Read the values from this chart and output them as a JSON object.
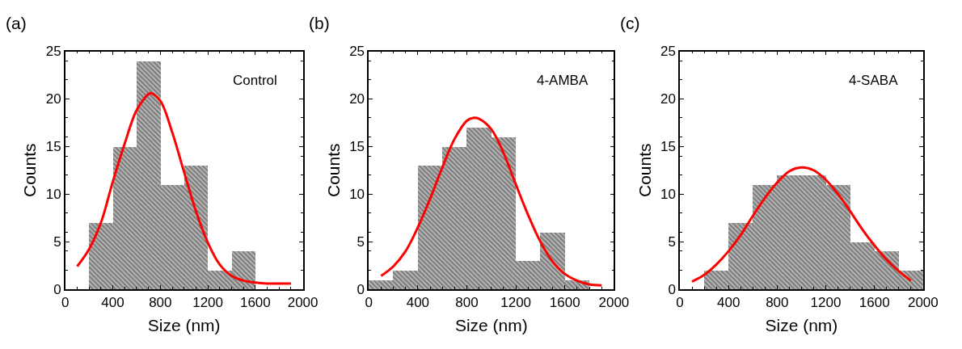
{
  "chart_data": [
    {
      "type": "histogram",
      "title": "(a)",
      "xlabel": "Size (nm)",
      "ylabel": "Counts",
      "annotations": [
        "Control"
      ],
      "bins": [
        200,
        400,
        600,
        800,
        1000,
        1200,
        1400,
        1600
      ],
      "values": [
        7,
        15,
        24,
        11,
        13,
        2,
        4
      ],
      "color": "#3a3a3a",
      "series": [
        {
          "type": "line",
          "color": "#ff0000",
          "x": [
            100,
            200,
            300,
            400,
            500,
            600,
            700,
            720,
            800,
            900,
            1000,
            1100,
            1200,
            1300,
            1400,
            1500,
            1600,
            1700,
            1800,
            1900
          ],
          "values": [
            2.4,
            4.2,
            7,
            11.3,
            15.3,
            18.8,
            20.5,
            20.6,
            19.8,
            16.5,
            12.3,
            8.2,
            4.9,
            2.6,
            1.4,
            0.9,
            0.7,
            0.6,
            0.6,
            0.6
          ]
        }
      ],
      "xlim": [
        0,
        2000
      ],
      "xticks": [
        0,
        400,
        800,
        1200,
        1600,
        2000
      ],
      "ylim": [
        0,
        25
      ],
      "yticks": [
        0,
        5,
        10,
        15,
        20,
        25
      ]
    },
    {
      "type": "histogram",
      "title": "(b)",
      "xlabel": "Size (nm)",
      "ylabel": "Counts",
      "annotations": [
        "4-AMBA"
      ],
      "bins": [
        0,
        200,
        400,
        600,
        800,
        1000,
        1200,
        1400,
        1600,
        1800
      ],
      "values": [
        1,
        2,
        13,
        15,
        17,
        16,
        3,
        6,
        1
      ],
      "color": "#3a3a3a",
      "series": [
        {
          "type": "line",
          "color": "#ff0000",
          "x": [
            100,
            200,
            300,
            400,
            500,
            600,
            700,
            800,
            850,
            900,
            1000,
            1100,
            1200,
            1300,
            1400,
            1500,
            1600,
            1700,
            1800,
            1900
          ],
          "values": [
            1.4,
            2.4,
            4,
            6.5,
            9.5,
            12.8,
            15.8,
            17.7,
            18,
            17.9,
            16.8,
            14.3,
            11,
            7.8,
            5,
            2.9,
            1.6,
            0.9,
            0.5,
            0.4
          ]
        }
      ],
      "xlim": [
        0,
        2000
      ],
      "xticks": [
        0,
        400,
        800,
        1200,
        1600,
        2000
      ],
      "ylim": [
        0,
        25
      ],
      "yticks": [
        0,
        5,
        10,
        15,
        20,
        25
      ]
    },
    {
      "type": "histogram",
      "title": "(c)",
      "xlabel": "Size (nm)",
      "ylabel": "Counts",
      "annotations": [
        "4-SABA"
      ],
      "bins": [
        200,
        400,
        600,
        800,
        1000,
        1200,
        1400,
        1600,
        1800,
        2000
      ],
      "values": [
        2,
        7,
        11,
        12,
        12,
        11,
        5,
        4,
        2
      ],
      "color": "#3a3a3a",
      "series": [
        {
          "type": "line",
          "color": "#ff0000",
          "x": [
            100,
            200,
            300,
            400,
            500,
            600,
            700,
            800,
            900,
            1000,
            1100,
            1200,
            1300,
            1400,
            1500,
            1600,
            1700,
            1800,
            1900
          ],
          "values": [
            0.8,
            1.5,
            2.6,
            4,
            5.7,
            7.7,
            9.6,
            11.2,
            12.4,
            12.8,
            12.5,
            11.5,
            10,
            8.2,
            6.3,
            4.6,
            3.1,
            1.9,
            0.9
          ]
        }
      ],
      "xlim": [
        0,
        2000
      ],
      "xticks": [
        0,
        400,
        800,
        1200,
        1600,
        2000
      ],
      "ylim": [
        0,
        25
      ],
      "yticks": [
        0,
        5,
        10,
        15,
        20,
        25
      ]
    }
  ]
}
